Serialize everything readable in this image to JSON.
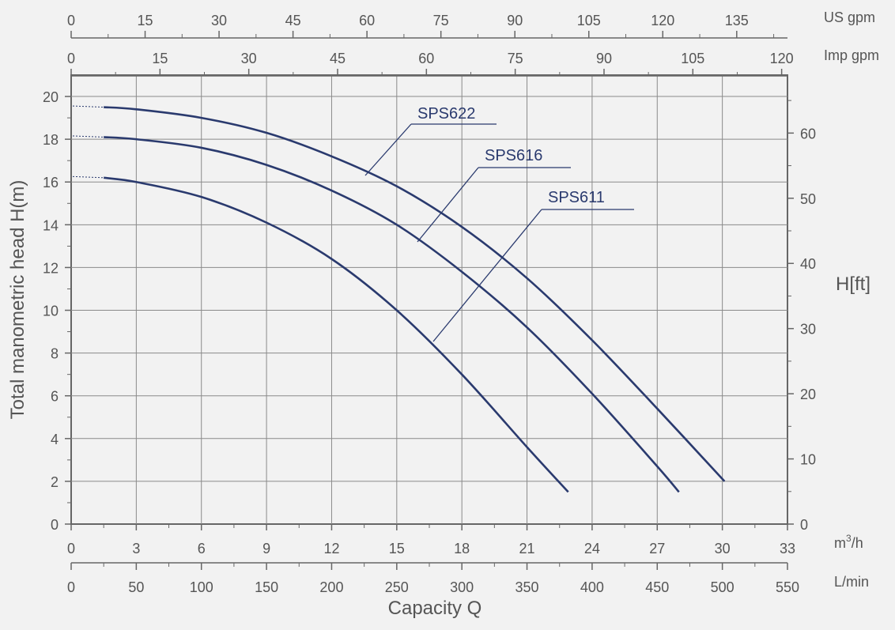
{
  "chart_data": {
    "type": "line",
    "ylabel": "Total manometric head H(m)",
    "xlabel": "Capacity Q",
    "x_unit": "m3/h",
    "x_unit_base": "m",
    "x_unit_sup": "3",
    "x_unit_tail": "/h",
    "xlim": [
      0,
      33
    ],
    "ylim": [
      0,
      21
    ],
    "x_ticks": [
      "0",
      "3",
      "6",
      "9",
      "12",
      "15",
      "18",
      "21",
      "24",
      "27",
      "30",
      "33"
    ],
    "y_ticks": [
      "0",
      "2",
      "4",
      "6",
      "8",
      "10",
      "12",
      "14",
      "16",
      "18",
      "20"
    ],
    "top_axes": [
      {
        "unit": "US gpm",
        "ticks": [
          "0",
          "15",
          "30",
          "45",
          "60",
          "75",
          "90",
          "105",
          "120",
          "135"
        ]
      },
      {
        "unit": "Imp gpm",
        "ticks": [
          "0",
          "15",
          "30",
          "45",
          "60",
          "75",
          "90",
          "105",
          "120"
        ]
      }
    ],
    "bottom_axis_2": {
      "unit": "L/min",
      "ticks": [
        "0",
        "50",
        "100",
        "150",
        "200",
        "250",
        "300",
        "350",
        "400",
        "450",
        "500",
        "550"
      ]
    },
    "right_axis": {
      "label": "H[ft]",
      "ticks": [
        "0",
        "10",
        "20",
        "30",
        "40",
        "50",
        "60"
      ]
    },
    "grid": true,
    "series": [
      {
        "name": "SPS622",
        "color": "#2a3a6e",
        "x": [
          1.5,
          3,
          6,
          9,
          12,
          15,
          18,
          21,
          24,
          27,
          30.1
        ],
        "y": [
          19.5,
          19.4,
          19.0,
          18.3,
          17.2,
          15.8,
          13.9,
          11.5,
          8.6,
          5.4,
          2.0
        ]
      },
      {
        "name": "SPS616",
        "color": "#2a3a6e",
        "x": [
          1.5,
          3,
          6,
          9,
          12,
          15,
          18,
          21,
          24,
          27,
          28.0
        ],
        "y": [
          18.1,
          18.0,
          17.6,
          16.8,
          15.6,
          14.0,
          11.8,
          9.2,
          6.1,
          2.7,
          1.5
        ]
      },
      {
        "name": "SPS611",
        "color": "#2a3a6e",
        "x": [
          1.5,
          3,
          6,
          9,
          12,
          15,
          18,
          21,
          22.9
        ],
        "y": [
          16.2,
          16.0,
          15.3,
          14.1,
          12.4,
          10.0,
          7.0,
          3.6,
          1.5
        ]
      }
    ]
  }
}
